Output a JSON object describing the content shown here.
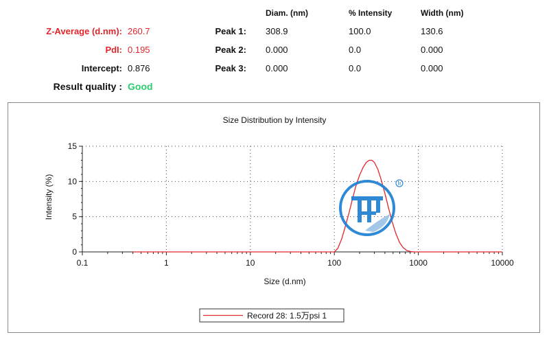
{
  "summary": {
    "z_average_label": "Z-Average (d.nm):",
    "z_average_value": "260.7",
    "pdi_label": "PdI:",
    "pdi_value": "0.195",
    "intercept_label": "Intercept:",
    "intercept_value": "0.876",
    "quality_label": "Result quality :",
    "quality_value": "Good"
  },
  "peaks": {
    "headers": [
      "Diam. (nm)",
      "% Intensity",
      "Width (nm)"
    ],
    "rows": [
      {
        "label": "Peak 1:",
        "diam": "308.9",
        "intensity": "100.0",
        "width": "130.6"
      },
      {
        "label": "Peak 2:",
        "diam": "0.000",
        "intensity": "0.0",
        "width": "0.000"
      },
      {
        "label": "Peak 3:",
        "diam": "0.000",
        "intensity": "0.0",
        "width": "0.000"
      }
    ]
  },
  "colors": {
    "accent_red": "#e0262b",
    "good_green": "#2ecc71",
    "series_red": "#e0262b",
    "logo_blue": "#1f7fd1"
  },
  "chart_data": {
    "type": "line",
    "title": "Size Distribution by Intensity",
    "xlabel": "Size (d.nm)",
    "ylabel": "Intensity (%)",
    "x_scale": "log",
    "xlim": [
      0.1,
      10000
    ],
    "ylim": [
      0,
      15
    ],
    "x_ticks": [
      "0.1",
      "1",
      "10",
      "100",
      "1000",
      "10000"
    ],
    "y_ticks": [
      "0",
      "5",
      "10",
      "15"
    ],
    "grid": "dotted",
    "legend_position": "bottom-center",
    "series": [
      {
        "name": "Record 28: 1.5万psi 1",
        "color": "#e0262b",
        "x": [
          0.4,
          100,
          110,
          122,
          135,
          150,
          165,
          180,
          200,
          220,
          240,
          260,
          280,
          300,
          330,
          360,
          400,
          440,
          490,
          540,
          600,
          660,
          730,
          810,
          900,
          1000,
          10000
        ],
        "y": [
          0,
          0,
          0.5,
          1.8,
          3.6,
          5.6,
          7.6,
          9.3,
          10.9,
          12.0,
          12.7,
          13.0,
          13.0,
          12.7,
          11.7,
          10.3,
          8.3,
          6.3,
          4.2,
          2.6,
          1.3,
          0.6,
          0.2,
          0.05,
          0,
          0,
          0
        ]
      }
    ]
  }
}
